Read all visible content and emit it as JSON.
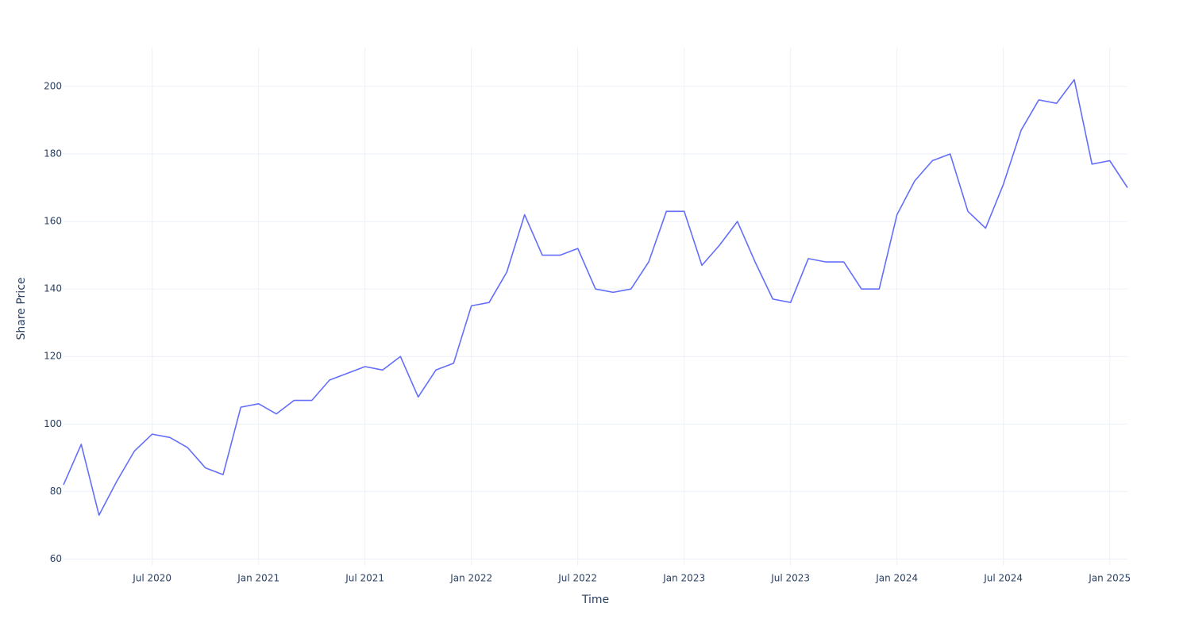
{
  "chart_data": {
    "type": "line",
    "x_label": "Time",
    "y_label": "Share Price",
    "x": [
      "2020-02",
      "2020-03",
      "2020-04",
      "2020-05",
      "2020-06",
      "2020-07",
      "2020-08",
      "2020-09",
      "2020-10",
      "2020-11",
      "2020-12",
      "2021-01",
      "2021-02",
      "2021-03",
      "2021-04",
      "2021-05",
      "2021-06",
      "2021-07",
      "2021-08",
      "2021-09",
      "2021-10",
      "2021-11",
      "2021-12",
      "2022-01",
      "2022-02",
      "2022-03",
      "2022-04",
      "2022-05",
      "2022-06",
      "2022-07",
      "2022-08",
      "2022-09",
      "2022-10",
      "2022-11",
      "2022-12",
      "2023-01",
      "2023-02",
      "2023-03",
      "2023-04",
      "2023-05",
      "2023-06",
      "2023-07",
      "2023-08",
      "2023-09",
      "2023-10",
      "2023-11",
      "2023-12",
      "2024-01",
      "2024-02",
      "2024-03",
      "2024-04",
      "2024-05",
      "2024-06",
      "2024-07",
      "2024-08",
      "2024-09",
      "2024-10",
      "2024-11",
      "2024-12",
      "2025-01",
      "2025-02"
    ],
    "series": [
      {
        "name": "Share Price",
        "color": "#636efa",
        "values": [
          82,
          94,
          73,
          83,
          92,
          97,
          96,
          93,
          87,
          85,
          105,
          106,
          103,
          107,
          107,
          113,
          115,
          117,
          116,
          120,
          108,
          116,
          118,
          135,
          136,
          145,
          162,
          150,
          150,
          152,
          140,
          139,
          140,
          148,
          163,
          163,
          147,
          153,
          160,
          148,
          137,
          136,
          149,
          148,
          148,
          140,
          140,
          162,
          172,
          178,
          180,
          163,
          158,
          171,
          187,
          196,
          195,
          202,
          177,
          178,
          170
        ]
      }
    ],
    "xlim": [
      "2020-02",
      "2025-02"
    ],
    "xticks": [
      {
        "value": "2020-07",
        "label": "Jul 2020"
      },
      {
        "value": "2021-01",
        "label": "Jan 2021"
      },
      {
        "value": "2021-07",
        "label": "Jul 2021"
      },
      {
        "value": "2022-01",
        "label": "Jan 2022"
      },
      {
        "value": "2022-07",
        "label": "Jul 2022"
      },
      {
        "value": "2023-01",
        "label": "Jan 2023"
      },
      {
        "value": "2023-07",
        "label": "Jul 2023"
      },
      {
        "value": "2024-01",
        "label": "Jan 2024"
      },
      {
        "value": "2024-07",
        "label": "Jul 2024"
      },
      {
        "value": "2025-01",
        "label": "Jan 2025"
      }
    ],
    "ylim": [
      58,
      211.5
    ],
    "yticks": [
      60,
      80,
      100,
      120,
      140,
      160,
      180,
      200
    ],
    "grid": true
  }
}
